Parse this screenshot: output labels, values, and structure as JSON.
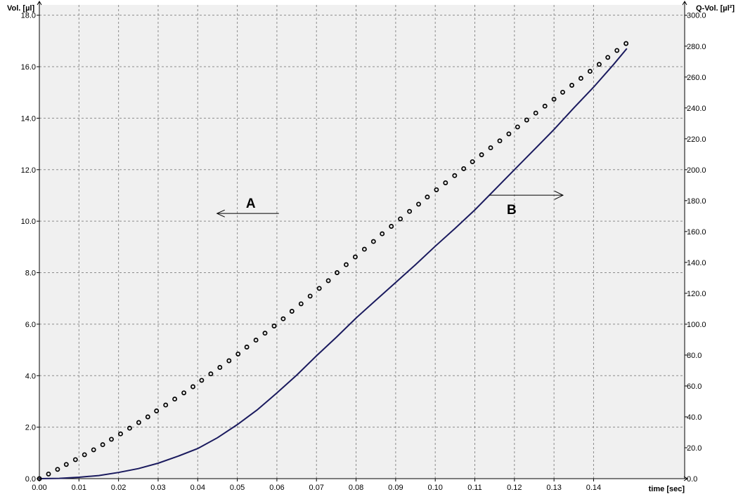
{
  "chart_data": {
    "type": "line",
    "title": "",
    "xlabel": "time [sec]",
    "ylabel_left": "Vol. [µl]",
    "ylabel_right": "Q-Vol. [µl²]",
    "xlim": [
      0,
      0.163
    ],
    "ylim_left": [
      0,
      18.4
    ],
    "ylim_right": [
      0,
      306.7
    ],
    "x_ticks": [
      0.0,
      0.01,
      0.02,
      0.03,
      0.04,
      0.05,
      0.06,
      0.07,
      0.08,
      0.09,
      0.1,
      0.11,
      0.12,
      0.13,
      0.14
    ],
    "x_tick_labels": [
      "0.00",
      "0.01",
      "0.02",
      "0.03",
      "0.04",
      "0.05",
      "0.06",
      "0.07",
      "0.08",
      "0.09",
      "0.10",
      "0.11",
      "0.12",
      "0.13",
      "0.14"
    ],
    "y_left_ticks": [
      0,
      2,
      4,
      6,
      8,
      10,
      12,
      14,
      16,
      18
    ],
    "y_left_tick_labels": [
      "0.0",
      "2.0",
      "4.0",
      "6.0",
      "8.0",
      "10.0",
      "12.0",
      "14.0",
      "16.0",
      "18.0"
    ],
    "y_right_ticks": [
      0,
      20,
      40,
      60,
      80,
      100,
      120,
      140,
      160,
      180,
      200,
      220,
      240,
      260,
      280,
      300
    ],
    "y_right_tick_labels": [
      "0.0",
      "20.0",
      "40.0",
      "60.0",
      "80.0",
      "100.0",
      "120.0",
      "140.0",
      "160.0",
      "180.0",
      "200.0",
      "220.0",
      "240.0",
      "260.0",
      "280.0",
      "300.0"
    ],
    "grid": true,
    "series": [
      {
        "axis": "left",
        "style": "circle-markers",
        "x": [
          0.0,
          0.0023,
          0.0046,
          0.0068,
          0.0091,
          0.0114,
          0.0137,
          0.016,
          0.0182,
          0.0205,
          0.0228,
          0.0251,
          0.0274,
          0.0296,
          0.0319,
          0.0342,
          0.0365,
          0.0388,
          0.041,
          0.0433,
          0.0456,
          0.0479,
          0.0502,
          0.0524,
          0.0547,
          0.057,
          0.0593,
          0.0616,
          0.0638,
          0.0661,
          0.0684,
          0.0707,
          0.073,
          0.0752,
          0.0775,
          0.0798,
          0.0821,
          0.0844,
          0.0866,
          0.0889,
          0.0912,
          0.0935,
          0.0958,
          0.098,
          0.1003,
          0.1026,
          0.1049,
          0.1072,
          0.1094,
          0.1117,
          0.114,
          0.1163,
          0.1186,
          0.1208,
          0.1231,
          0.1254,
          0.1277,
          0.13,
          0.1322,
          0.1345,
          0.1368,
          0.1391,
          0.1414,
          0.1436,
          0.1459,
          0.1482
        ],
        "y": [
          0.0,
          0.18,
          0.36,
          0.55,
          0.74,
          0.93,
          1.12,
          1.32,
          1.53,
          1.74,
          1.96,
          2.18,
          2.4,
          2.63,
          2.86,
          3.09,
          3.33,
          3.57,
          3.82,
          4.07,
          4.32,
          4.58,
          4.84,
          5.11,
          5.38,
          5.65,
          5.93,
          6.21,
          6.5,
          6.79,
          7.09,
          7.39,
          7.69,
          8.0,
          8.31,
          8.61,
          8.91,
          9.21,
          9.51,
          9.8,
          10.09,
          10.38,
          10.66,
          10.94,
          11.22,
          11.49,
          11.77,
          12.04,
          12.31,
          12.58,
          12.85,
          13.12,
          13.39,
          13.66,
          13.93,
          14.2,
          14.47,
          14.74,
          15.01,
          15.28,
          15.55,
          15.82,
          16.09,
          16.36,
          16.63,
          16.9
        ]
      },
      {
        "axis": "right",
        "style": "line",
        "color": "#1a1a5e",
        "x": [
          0.0,
          0.005,
          0.01,
          0.015,
          0.02,
          0.025,
          0.03,
          0.035,
          0.04,
          0.045,
          0.05,
          0.055,
          0.06,
          0.065,
          0.07,
          0.075,
          0.08,
          0.085,
          0.09,
          0.095,
          0.1,
          0.105,
          0.11,
          0.115,
          0.12,
          0.125,
          0.13,
          0.135,
          0.14,
          0.145,
          0.1484
        ],
        "y": [
          0.0,
          0.2,
          0.9,
          2.0,
          4.0,
          6.5,
          10.0,
          14.5,
          19.5,
          26.5,
          35.0,
          44.5,
          55.5,
          67.0,
          79.5,
          91.5,
          104.0,
          115.5,
          127.0,
          138.5,
          150.5,
          162.0,
          174.0,
          187.0,
          200.0,
          213.0,
          226.0,
          240.0,
          253.5,
          268.0,
          278.5
        ]
      }
    ],
    "annotations": [
      {
        "text": "A",
        "arrow": "left",
        "x": 0.0605,
        "y": 10.3
      },
      {
        "text": "B",
        "arrow": "right",
        "x": 0.1225,
        "y": 183.5
      }
    ]
  }
}
